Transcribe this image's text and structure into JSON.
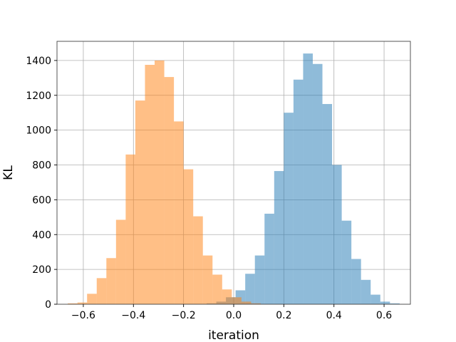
{
  "chart_data": {
    "type": "histogram",
    "xlabel": "iteration",
    "ylabel": "KL",
    "xlim": [
      -0.705,
      0.705
    ],
    "ylim": [
      0,
      1510
    ],
    "grid": true,
    "x_ticks": [
      -0.6,
      -0.4,
      -0.2,
      0.0,
      0.2,
      0.4,
      0.6
    ],
    "x_tick_labels": [
      "−0.6",
      "−0.4",
      "−0.2",
      "0.0",
      "0.2",
      "0.4",
      "0.6"
    ],
    "y_ticks": [
      0,
      200,
      400,
      600,
      800,
      1000,
      1200,
      1400
    ],
    "y_tick_labels": [
      "0",
      "200",
      "400",
      "600",
      "800",
      "1000",
      "1200",
      "1400"
    ],
    "series": [
      {
        "color": "#1f77b4",
        "opacity": 0.5,
        "bin_edges": [
          -0.108,
          -0.0695,
          -0.031,
          0.0075,
          0.046,
          0.0845,
          0.123,
          0.1615,
          0.2,
          0.2385,
          0.277,
          0.3155,
          0.354,
          0.3925,
          0.431,
          0.4695,
          0.508,
          0.5465,
          0.585,
          0.6235,
          0.662
        ],
        "counts": [
          5,
          15,
          40,
          80,
          175,
          280,
          520,
          765,
          1100,
          1290,
          1440,
          1380,
          1150,
          800,
          480,
          260,
          140,
          55,
          15,
          5
        ]
      },
      {
        "color": "#ff7f0e",
        "opacity": 0.5,
        "bin_edges": [
          -0.662,
          -0.6235,
          -0.585,
          -0.5465,
          -0.508,
          -0.4695,
          -0.431,
          -0.3925,
          -0.354,
          -0.3155,
          -0.277,
          -0.2385,
          -0.2,
          -0.1615,
          -0.123,
          -0.0845,
          -0.046,
          -0.0075,
          0.031,
          0.0695,
          0.108
        ],
        "counts": [
          5,
          10,
          60,
          150,
          265,
          485,
          860,
          1170,
          1375,
          1400,
          1305,
          1050,
          775,
          505,
          280,
          170,
          85,
          40,
          15,
          5
        ]
      }
    ]
  }
}
